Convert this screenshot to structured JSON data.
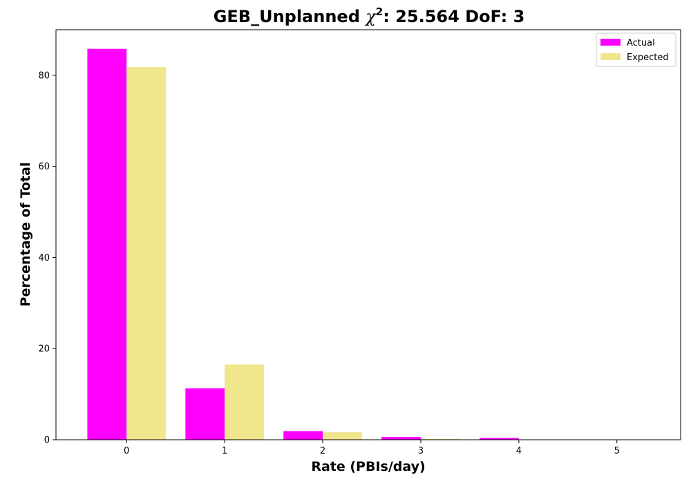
{
  "chart_data": {
    "type": "bar",
    "title_prefix": "GEB_Unplanned ",
    "title_chi": "χ",
    "title_sup": "2",
    "title_suffix": ": 25.564 DoF: 3",
    "xlabel": "Rate (PBIs/day)",
    "ylabel": "Percentage of Total",
    "categories": [
      "0",
      "1",
      "2",
      "3",
      "4",
      "5"
    ],
    "x": [
      0,
      1,
      2,
      3,
      4,
      5
    ],
    "ylim": [
      0,
      90
    ],
    "yticks": [
      0,
      20,
      40,
      60,
      80
    ],
    "grid": false,
    "legend_position": "top-right",
    "series": [
      {
        "name": "Actual",
        "color": "#ff00ff",
        "values": [
          85.8,
          11.3,
          1.9,
          0.6,
          0.4,
          0
        ]
      },
      {
        "name": "Expected",
        "color": "#f0e68c",
        "values": [
          81.8,
          16.5,
          1.65,
          0.15,
          0.02,
          0.0
        ]
      }
    ]
  }
}
